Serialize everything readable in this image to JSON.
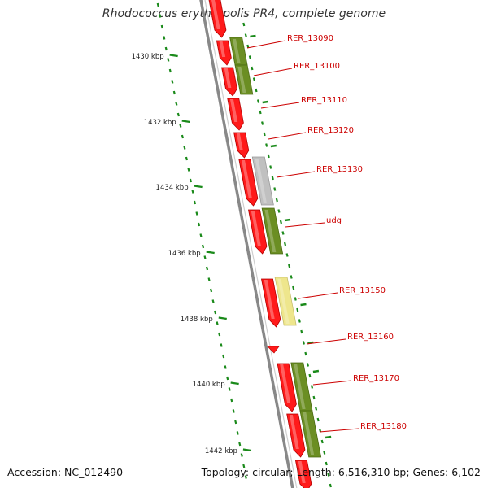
{
  "title": "Rhodococcus erythropolis PR4, complete genome",
  "footer": {
    "accession": "Accession: NC_012490",
    "summary": "Topology: circular; Length: 6,516,310 bp; Genes: 6,102"
  },
  "colors": {
    "gene_arrow": "#ff1a1a",
    "gene_arrow_dark": "#b30000",
    "feature_green": "#6b8e23",
    "feature_gray": "#c0c0c0",
    "feature_yellow": "#eee68c",
    "backbone": "#888888",
    "tick": "#1a8a1a",
    "label": "#cc0000"
  },
  "ruler_labels": [
    "1430 kbp",
    "1432 kbp",
    "1434 kbp",
    "1436 kbp",
    "1438 kbp",
    "1440 kbp",
    "1442 kbp"
  ],
  "gene_labels": [
    "RER_13090",
    "RER_13100",
    "RER_13110",
    "RER_13120",
    "RER_13130",
    "udg",
    "RER_13150",
    "RER_13160",
    "RER_13170",
    "RER_13180"
  ],
  "feature_colors": [
    "green",
    "green",
    "gray",
    "green",
    "yellow",
    "green",
    "green"
  ]
}
